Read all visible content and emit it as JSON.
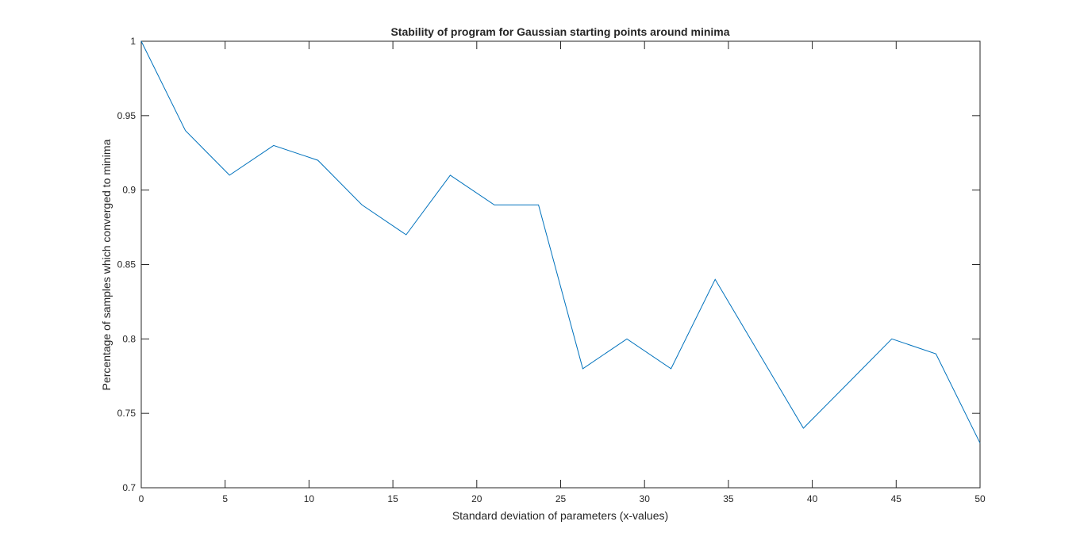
{
  "chart_data": {
    "type": "line",
    "title": "Stability of program for Gaussian starting points around minima",
    "xlabel": "Standard deviation of parameters (x-values)",
    "ylabel": "Percentage of samples which converged to minima",
    "xlim": [
      0,
      50
    ],
    "ylim": [
      0.7,
      1.0
    ],
    "xticks": [
      0,
      5,
      10,
      15,
      20,
      25,
      30,
      35,
      40,
      45,
      50
    ],
    "xtick_labels": [
      "0",
      "5",
      "10",
      "15",
      "20",
      "25",
      "30",
      "35",
      "40",
      "45",
      "50"
    ],
    "yticks": [
      0.7,
      0.75,
      0.8,
      0.85,
      0.9,
      0.95,
      1.0
    ],
    "ytick_labels": [
      "0.7",
      "0.75",
      "0.8",
      "0.85",
      "0.9",
      "0.95",
      "1"
    ],
    "grid": false,
    "legend": "none",
    "line_color": "#0072BD",
    "series": [
      {
        "x": [
          0,
          2.63,
          5.26,
          7.89,
          10.53,
          13.16,
          15.79,
          18.42,
          21.05,
          23.68,
          26.32,
          28.95,
          31.58,
          34.21,
          36.84,
          39.47,
          42.11,
          44.74,
          47.37,
          50
        ],
        "values": [
          1.0,
          0.94,
          0.91,
          0.93,
          0.92,
          0.89,
          0.87,
          0.91,
          0.89,
          0.89,
          0.78,
          0.8,
          0.78,
          0.84,
          0.79,
          0.74,
          0.77,
          0.8,
          0.79,
          0.73
        ]
      }
    ]
  }
}
